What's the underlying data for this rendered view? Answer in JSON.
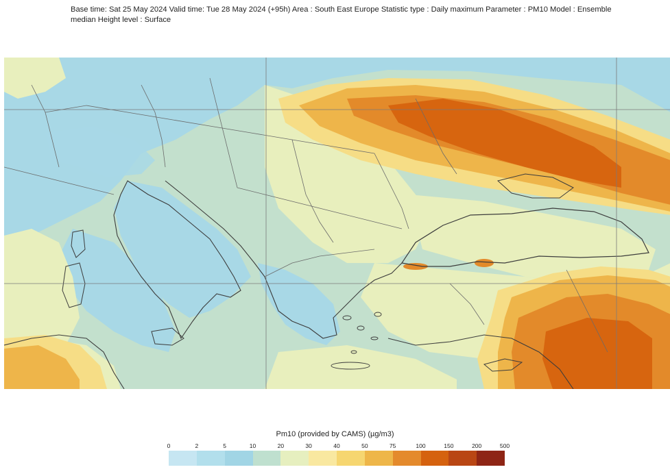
{
  "header": {
    "line1": "Base time: Sat 25 May 2024 Valid time: Tue 28 May 2024 (+95h) Area : South East Europe Statistic type : Daily maximum Parameter : PM10 Model : Ensemble",
    "line2": "median Height level : Surface"
  },
  "legend": {
    "title": "Pm10 (provided by CAMS) (µg/m3)",
    "ticks": [
      "0",
      "2",
      "5",
      "10",
      "20",
      "30",
      "40",
      "50",
      "75",
      "100",
      "150",
      "200",
      "500"
    ],
    "colors": [
      "#c6e6f2",
      "#b2dfec",
      "#a1d5e5",
      "#bfe0cf",
      "#e6efbf",
      "#f9e8a0",
      "#f6d670",
      "#eeb649",
      "#e48a2c",
      "#d5620f",
      "#b94614",
      "#8e2515"
    ]
  },
  "map": {
    "colors": {
      "sea_blue": "#a8d8e6",
      "land_green": "#c3e0cd",
      "pale_yellow": "#e8efbd",
      "yellow": "#f6dd86",
      "orange": "#eeb54a",
      "dark_orange": "#e38a2a",
      "red_orange": "#d7650f",
      "coastline": "#3c3c3c",
      "border": "#6a6a6a",
      "grid": "#7a7a7a"
    }
  }
}
